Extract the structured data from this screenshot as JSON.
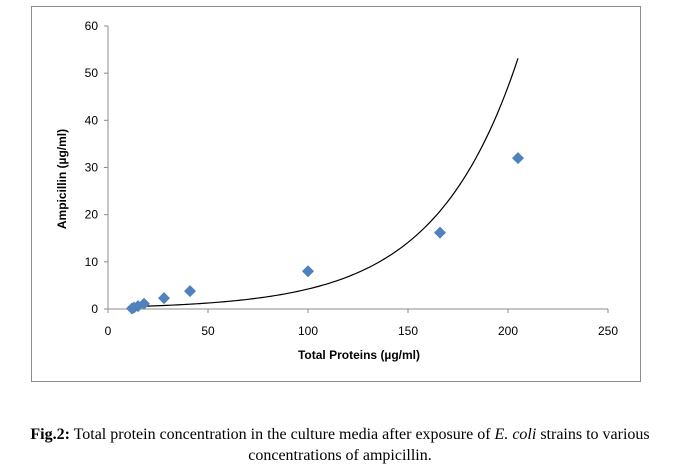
{
  "chart_data": {
    "type": "scatter",
    "xlabel": "Total Proteins (µg/ml)",
    "ylabel": "Ampicillin (µg/ml)",
    "xlim": [
      0,
      250
    ],
    "ylim": [
      0,
      60
    ],
    "x_ticks": [
      "0",
      "50",
      "100",
      "150",
      "200",
      "250"
    ],
    "y_ticks": [
      "0",
      "10",
      "20",
      "30",
      "40",
      "50",
      "60"
    ],
    "grid": false,
    "legend": "none",
    "marker_color": "#4f81bd",
    "trendline_color": "#000000",
    "series": [
      {
        "x": [
          12,
          13,
          15,
          18,
          28,
          41,
          100,
          166,
          205
        ],
        "y": [
          0.1,
          0.3,
          0.6,
          1.1,
          2.3,
          3.8,
          8.0,
          16.2,
          32.0
        ]
      }
    ],
    "trendline": {
      "type": "exponential",
      "a": 0.38,
      "b": 0.0241,
      "x_range": [
        10,
        205
      ]
    }
  },
  "caption": {
    "label": "Fig.2:",
    "text_before": " Total protein concentration in the culture media after exposure of ",
    "organism": "E. coli",
    "text_after": " strains to various concentrations of ampicillin."
  }
}
